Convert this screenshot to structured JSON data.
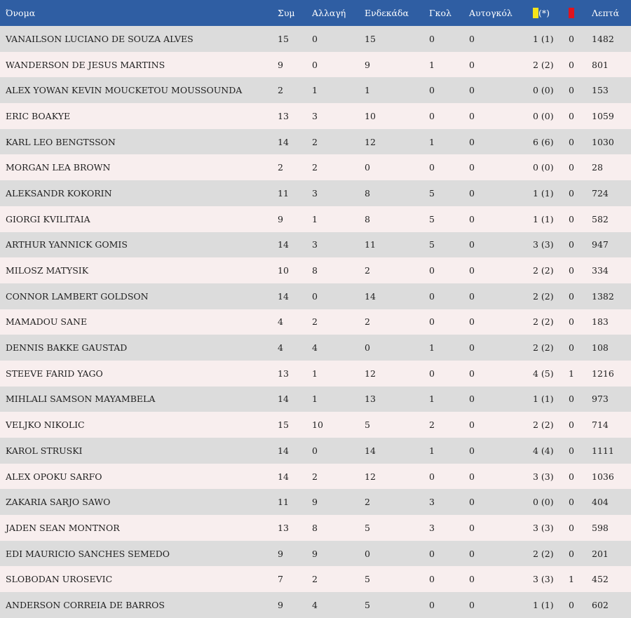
{
  "header": {
    "name": "Όνομα",
    "apps": "Συμ",
    "subs": "Αλλαγή",
    "starts": "Ενδεκάδα",
    "goals": "Γκολ",
    "own_goals": "Αυτογκόλ",
    "yellow_suffix": "(*)",
    "minutes": "Λεπτά"
  },
  "colors": {
    "header_bg": "#2f5ea3",
    "yellow_card": "#f5e31a",
    "red_card": "#e0141e"
  },
  "icons": {
    "yellow": "yellow-card-icon",
    "red": "red-card-icon"
  },
  "players": [
    {
      "name": "VANAILSON LUCIANO DE SOUZA ALVES",
      "apps": "15",
      "subs": "0",
      "starts": "15",
      "goals": "0",
      "own": "0",
      "yellow": "1 (1)",
      "red": "0",
      "min": "1482"
    },
    {
      "name": "WANDERSON DE JESUS MARTINS",
      "apps": "9",
      "subs": "0",
      "starts": "9",
      "goals": "1",
      "own": "0",
      "yellow": "2 (2)",
      "red": "0",
      "min": "801"
    },
    {
      "name": "ALEX YOWAN KEVIN MOUCKETOU MOUSSOUNDA",
      "apps": "2",
      "subs": "1",
      "starts": "1",
      "goals": "0",
      "own": "0",
      "yellow": "0 (0)",
      "red": "0",
      "min": "153"
    },
    {
      "name": "ERIC BOAKYE",
      "apps": "13",
      "subs": "3",
      "starts": "10",
      "goals": "0",
      "own": "0",
      "yellow": "0 (0)",
      "red": "0",
      "min": "1059"
    },
    {
      "name": "KARL LEO BENGTSSON",
      "apps": "14",
      "subs": "2",
      "starts": "12",
      "goals": "1",
      "own": "0",
      "yellow": "6 (6)",
      "red": "0",
      "min": "1030"
    },
    {
      "name": "MORGAN LEA BROWN",
      "apps": "2",
      "subs": "2",
      "starts": "0",
      "goals": "0",
      "own": "0",
      "yellow": "0 (0)",
      "red": "0",
      "min": "28"
    },
    {
      "name": "ALEKSANDR KOKORIN",
      "apps": "11",
      "subs": "3",
      "starts": "8",
      "goals": "5",
      "own": "0",
      "yellow": "1 (1)",
      "red": "0",
      "min": "724"
    },
    {
      "name": "GIORGI KVILITAIA",
      "apps": "9",
      "subs": "1",
      "starts": "8",
      "goals": "5",
      "own": "0",
      "yellow": "1 (1)",
      "red": "0",
      "min": "582"
    },
    {
      "name": "ARTHUR YANNICK GOMIS",
      "apps": "14",
      "subs": "3",
      "starts": "11",
      "goals": "5",
      "own": "0",
      "yellow": "3 (3)",
      "red": "0",
      "min": "947"
    },
    {
      "name": "MILOSZ MATYSIK",
      "apps": "10",
      "subs": "8",
      "starts": "2",
      "goals": "0",
      "own": "0",
      "yellow": "2 (2)",
      "red": "0",
      "min": "334"
    },
    {
      "name": "CONNOR LAMBERT GOLDSON",
      "apps": "14",
      "subs": "0",
      "starts": "14",
      "goals": "0",
      "own": "0",
      "yellow": "2 (2)",
      "red": "0",
      "min": "1382"
    },
    {
      "name": "MAMADOU SANE",
      "apps": "4",
      "subs": "2",
      "starts": "2",
      "goals": "0",
      "own": "0",
      "yellow": "2 (2)",
      "red": "0",
      "min": "183"
    },
    {
      "name": "DENNIS BAKKE GAUSTAD",
      "apps": "4",
      "subs": "4",
      "starts": "0",
      "goals": "1",
      "own": "0",
      "yellow": "2 (2)",
      "red": "0",
      "min": "108"
    },
    {
      "name": "STEEVE FARID YAGO",
      "apps": "13",
      "subs": "1",
      "starts": "12",
      "goals": "0",
      "own": "0",
      "yellow": "4 (5)",
      "red": "1",
      "min": "1216"
    },
    {
      "name": "MIHLALI SAMSON MAYAMBELA",
      "apps": "14",
      "subs": "1",
      "starts": "13",
      "goals": "1",
      "own": "0",
      "yellow": "1 (1)",
      "red": "0",
      "min": "973"
    },
    {
      "name": "VELJKO NIKOLIC",
      "apps": "15",
      "subs": "10",
      "starts": "5",
      "goals": "2",
      "own": "0",
      "yellow": "2 (2)",
      "red": "0",
      "min": "714"
    },
    {
      "name": "KAROL STRUSKI",
      "apps": "14",
      "subs": "0",
      "starts": "14",
      "goals": "1",
      "own": "0",
      "yellow": "4 (4)",
      "red": "0",
      "min": "1111"
    },
    {
      "name": "ALEX OPOKU SARFO",
      "apps": "14",
      "subs": "2",
      "starts": "12",
      "goals": "0",
      "own": "0",
      "yellow": "3 (3)",
      "red": "0",
      "min": "1036"
    },
    {
      "name": "ZAKARIA SARJO SAWO",
      "apps": "11",
      "subs": "9",
      "starts": "2",
      "goals": "3",
      "own": "0",
      "yellow": "0 (0)",
      "red": "0",
      "min": "404"
    },
    {
      "name": "JADEN SEAN MONTNOR",
      "apps": "13",
      "subs": "8",
      "starts": "5",
      "goals": "3",
      "own": "0",
      "yellow": "3 (3)",
      "red": "0",
      "min": "598"
    },
    {
      "name": "EDI MAURICIO SANCHES SEMEDO",
      "apps": "9",
      "subs": "9",
      "starts": "0",
      "goals": "0",
      "own": "0",
      "yellow": "2 (2)",
      "red": "0",
      "min": "201"
    },
    {
      "name": "SLOBODAN UROSEVIC",
      "apps": "7",
      "subs": "2",
      "starts": "5",
      "goals": "0",
      "own": "0",
      "yellow": "3 (3)",
      "red": "1",
      "min": "452"
    },
    {
      "name": "ANDERSON CORREIA DE BARROS",
      "apps": "9",
      "subs": "4",
      "starts": "5",
      "goals": "0",
      "own": "0",
      "yellow": "1 (1)",
      "red": "0",
      "min": "602"
    }
  ]
}
